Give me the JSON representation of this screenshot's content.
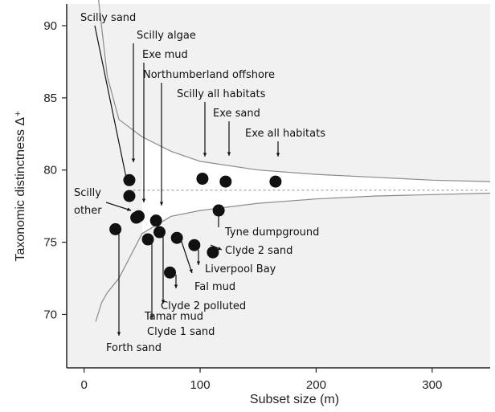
{
  "chart_data": {
    "type": "scatter",
    "xlabel": "Subset size (m)",
    "ylabel": "Taxonomic distinctness Δ⁺",
    "xlim": [
      -15,
      350
    ],
    "ylim": [
      66.3,
      91.5
    ],
    "xticks": [
      0,
      100,
      200,
      300
    ],
    "yticks": [
      70,
      75,
      80,
      85,
      90
    ],
    "mean_line": 78.6,
    "funnel_upper": [
      [
        10,
        93.5
      ],
      [
        20,
        86.5
      ],
      [
        30,
        83.5
      ],
      [
        50,
        82.3
      ],
      [
        75,
        81.3
      ],
      [
        100,
        80.6
      ],
      [
        150,
        80.0
      ],
      [
        200,
        79.7
      ],
      [
        250,
        79.5
      ],
      [
        300,
        79.3
      ],
      [
        350,
        79.2
      ]
    ],
    "funnel_lower": [
      [
        10,
        69.5
      ],
      [
        15,
        70.8
      ],
      [
        20,
        71.5
      ],
      [
        30,
        72.5
      ],
      [
        50,
        75.6
      ],
      [
        75,
        76.8
      ],
      [
        100,
        77.2
      ],
      [
        150,
        77.7
      ],
      [
        200,
        78.0
      ],
      [
        250,
        78.2
      ],
      [
        300,
        78.3
      ],
      [
        350,
        78.4
      ]
    ],
    "points": [
      {
        "label": "Scilly sand",
        "x": 39,
        "y": 79.3
      },
      {
        "label": "Scilly algae",
        "x": 39,
        "y": 78.2
      },
      {
        "label": "Exe mud",
        "x": 45,
        "y": 76.7
      },
      {
        "label": "Scilly other",
        "x": 47,
        "y": 76.8
      },
      {
        "label": "Northumberland offshore",
        "x": 62,
        "y": 76.5
      },
      {
        "label": "Scilly all habitats",
        "x": 102,
        "y": 79.4
      },
      {
        "label": "Exe sand",
        "x": 122,
        "y": 79.2
      },
      {
        "label": "Exe all habitats",
        "x": 165,
        "y": 79.2
      },
      {
        "label": "Tyne dumpground",
        "x": 116,
        "y": 77.2
      },
      {
        "label": "Clyde 2 sand",
        "x": 111,
        "y": 74.3
      },
      {
        "label": "Liverpool Bay",
        "x": 95,
        "y": 74.8
      },
      {
        "label": "Fal mud",
        "x": 80,
        "y": 75.3
      },
      {
        "label": "Clyde 2 polluted",
        "x": 65,
        "y": 75.7
      },
      {
        "label": "Tamar mud",
        "x": 74,
        "y": 72.9
      },
      {
        "label": "Clyde 1 sand",
        "x": 55,
        "y": 75.2
      },
      {
        "label": "Forth sand",
        "x": 27,
        "y": 75.9
      }
    ]
  }
}
